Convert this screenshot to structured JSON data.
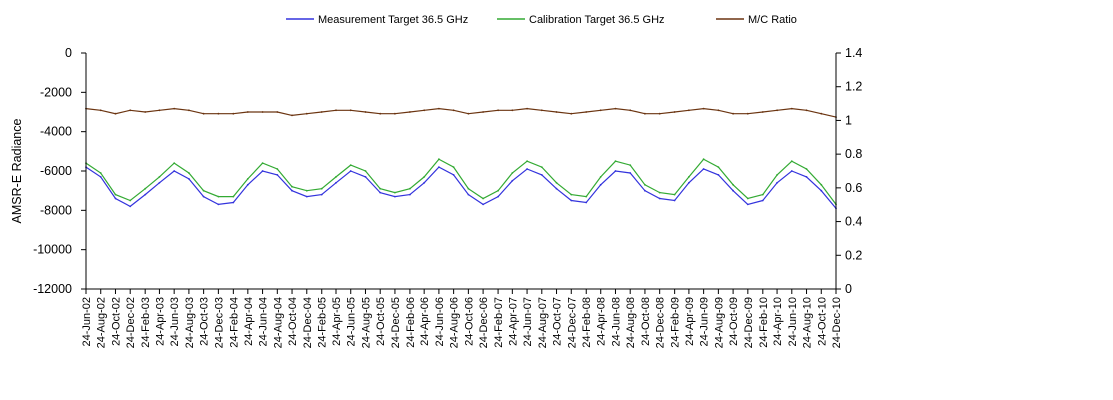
{
  "chart_data": {
    "type": "line",
    "title": "",
    "ylabel": "AMSR-E Radiance",
    "y2label": "",
    "xlabel": "",
    "ylim": [
      -12000,
      0
    ],
    "yticks": [
      "0",
      "-2000",
      "-4000",
      "-6000",
      "-8000",
      "-10000",
      "-12000"
    ],
    "y2lim": [
      0,
      1.4
    ],
    "y2ticks": [
      "1.4",
      "1.2",
      "1",
      "0.8",
      "0.6",
      "0.4",
      "0.2",
      "0"
    ],
    "x_start": "24-Jun-02",
    "x_end": "24-Dec-10",
    "xticks": [
      "24-Jun-02",
      "24-Aug-02",
      "24-Oct-02",
      "24-Dec-02",
      "24-Feb-03",
      "24-Apr-03",
      "24-Jun-03",
      "24-Aug-03",
      "24-Oct-03",
      "24-Dec-03",
      "24-Feb-04",
      "24-Apr-04",
      "24-Jun-04",
      "24-Aug-04",
      "24-Oct-04",
      "24-Dec-04",
      "24-Feb-05",
      "24-Apr-05",
      "24-Jun-05",
      "24-Aug-05",
      "24-Oct-05",
      "24-Dec-05",
      "24-Feb-06",
      "24-Apr-06",
      "24-Jun-06",
      "24-Aug-06",
      "24-Oct-06",
      "24-Dec-06",
      "24-Feb-07",
      "24-Apr-07",
      "24-Jun-07",
      "24-Aug-07",
      "24-Oct-07",
      "24-Dec-07",
      "24-Feb-08",
      "24-Apr-08",
      "24-Jun-08",
      "24-Aug-08",
      "24-Oct-08",
      "24-Dec-08",
      "24-Feb-09",
      "24-Apr-09",
      "24-Jun-09",
      "24-Aug-09",
      "24-Oct-09",
      "24-Dec-09",
      "24-Feb-10",
      "24-Apr-10",
      "24-Jun-10",
      "24-Aug-10",
      "24-Oct-10",
      "24-Dec-10"
    ],
    "legend_position": "top-center",
    "grid": false,
    "series": [
      {
        "name": "Measurement Target 36.5 GHz",
        "axis": "left",
        "color": "#3333dd",
        "x": [
          "24-Jun-02",
          "24-Aug-02",
          "24-Oct-02",
          "24-Dec-02",
          "24-Feb-03",
          "24-Apr-03",
          "24-Jun-03",
          "24-Aug-03",
          "24-Oct-03",
          "24-Dec-03",
          "24-Feb-04",
          "24-Apr-04",
          "24-Jun-04",
          "24-Aug-04",
          "24-Oct-04",
          "24-Dec-04",
          "24-Feb-05",
          "24-Apr-05",
          "24-Jun-05",
          "24-Aug-05",
          "24-Oct-05",
          "24-Dec-05",
          "24-Feb-06",
          "24-Apr-06",
          "24-Jun-06",
          "24-Aug-06",
          "24-Oct-06",
          "24-Dec-06",
          "24-Feb-07",
          "24-Apr-07",
          "24-Jun-07",
          "24-Aug-07",
          "24-Oct-07",
          "24-Dec-07",
          "24-Feb-08",
          "24-Apr-08",
          "24-Jun-08",
          "24-Aug-08",
          "24-Oct-08",
          "24-Dec-08",
          "24-Feb-09",
          "24-Apr-09",
          "24-Jun-09",
          "24-Aug-09",
          "24-Oct-09",
          "24-Dec-09",
          "24-Feb-10",
          "24-Apr-10",
          "24-Jun-10",
          "24-Aug-10",
          "24-Oct-10",
          "24-Dec-10"
        ],
        "values": [
          -5800,
          -6300,
          -7400,
          -7800,
          -7200,
          -6600,
          -6000,
          -6400,
          -7300,
          -7700,
          -7600,
          -6700,
          -6000,
          -6200,
          -7000,
          -7300,
          -7200,
          -6600,
          -6000,
          -6300,
          -7100,
          -7300,
          -7200,
          -6600,
          -5800,
          -6200,
          -7200,
          -7700,
          -7300,
          -6500,
          -5900,
          -6200,
          -6900,
          -7500,
          -7600,
          -6700,
          -6000,
          -6100,
          -7000,
          -7400,
          -7500,
          -6600,
          -5900,
          -6200,
          -7000,
          -7700,
          -7500,
          -6600,
          -6000,
          -6300,
          -7000,
          -7900
        ]
      },
      {
        "name": "Calibration Target 36.5 GHz",
        "axis": "left",
        "color": "#33aa33",
        "x": [
          "24-Jun-02",
          "24-Aug-02",
          "24-Oct-02",
          "24-Dec-02",
          "24-Feb-03",
          "24-Apr-03",
          "24-Jun-03",
          "24-Aug-03",
          "24-Oct-03",
          "24-Dec-03",
          "24-Feb-04",
          "24-Apr-04",
          "24-Jun-04",
          "24-Aug-04",
          "24-Oct-04",
          "24-Dec-04",
          "24-Feb-05",
          "24-Apr-05",
          "24-Jun-05",
          "24-Aug-05",
          "24-Oct-05",
          "24-Dec-05",
          "24-Feb-06",
          "24-Apr-06",
          "24-Jun-06",
          "24-Aug-06",
          "24-Oct-06",
          "24-Dec-06",
          "24-Feb-07",
          "24-Apr-07",
          "24-Jun-07",
          "24-Aug-07",
          "24-Oct-07",
          "24-Dec-07",
          "24-Feb-08",
          "24-Apr-08",
          "24-Jun-08",
          "24-Aug-08",
          "24-Oct-08",
          "24-Dec-08",
          "24-Feb-09",
          "24-Apr-09",
          "24-Jun-09",
          "24-Aug-09",
          "24-Oct-09",
          "24-Dec-09",
          "24-Feb-10",
          "24-Apr-10",
          "24-Jun-10",
          "24-Aug-10",
          "24-Oct-10",
          "24-Dec-10"
        ],
        "values": [
          -5600,
          -6100,
          -7200,
          -7500,
          -6900,
          -6300,
          -5600,
          -6100,
          -7000,
          -7300,
          -7300,
          -6400,
          -5600,
          -5900,
          -6800,
          -7000,
          -6900,
          -6300,
          -5700,
          -6000,
          -6900,
          -7100,
          -6900,
          -6300,
          -5400,
          -5800,
          -6900,
          -7400,
          -7000,
          -6100,
          -5500,
          -5800,
          -6600,
          -7200,
          -7300,
          -6300,
          -5500,
          -5700,
          -6700,
          -7100,
          -7200,
          -6300,
          -5400,
          -5800,
          -6700,
          -7400,
          -7200,
          -6200,
          -5500,
          -5900,
          -6700,
          -7700
        ]
      },
      {
        "name": "M/C Ratio",
        "axis": "right",
        "color": "#6b3410",
        "x": [
          "24-Jun-02",
          "24-Aug-02",
          "24-Oct-02",
          "24-Dec-02",
          "24-Feb-03",
          "24-Apr-03",
          "24-Jun-03",
          "24-Aug-03",
          "24-Oct-03",
          "24-Dec-03",
          "24-Feb-04",
          "24-Apr-04",
          "24-Jun-04",
          "24-Aug-04",
          "24-Oct-04",
          "24-Dec-04",
          "24-Feb-05",
          "24-Apr-05",
          "24-Jun-05",
          "24-Aug-05",
          "24-Oct-05",
          "24-Dec-05",
          "24-Feb-06",
          "24-Apr-06",
          "24-Jun-06",
          "24-Aug-06",
          "24-Oct-06",
          "24-Dec-06",
          "24-Feb-07",
          "24-Apr-07",
          "24-Jun-07",
          "24-Aug-07",
          "24-Oct-07",
          "24-Dec-07",
          "24-Feb-08",
          "24-Apr-08",
          "24-Jun-08",
          "24-Aug-08",
          "24-Oct-08",
          "24-Dec-08",
          "24-Feb-09",
          "24-Apr-09",
          "24-Jun-09",
          "24-Aug-09",
          "24-Oct-09",
          "24-Dec-09",
          "24-Feb-10",
          "24-Apr-10",
          "24-Jun-10",
          "24-Aug-10",
          "24-Oct-10",
          "24-Dec-10"
        ],
        "values": [
          1.07,
          1.06,
          1.04,
          1.06,
          1.05,
          1.06,
          1.07,
          1.06,
          1.04,
          1.04,
          1.04,
          1.05,
          1.05,
          1.05,
          1.03,
          1.04,
          1.05,
          1.06,
          1.06,
          1.05,
          1.04,
          1.04,
          1.05,
          1.06,
          1.07,
          1.06,
          1.04,
          1.05,
          1.06,
          1.06,
          1.07,
          1.06,
          1.05,
          1.04,
          1.05,
          1.06,
          1.07,
          1.06,
          1.04,
          1.04,
          1.05,
          1.06,
          1.07,
          1.06,
          1.04,
          1.04,
          1.05,
          1.06,
          1.07,
          1.06,
          1.04,
          1.02
        ]
      }
    ]
  }
}
